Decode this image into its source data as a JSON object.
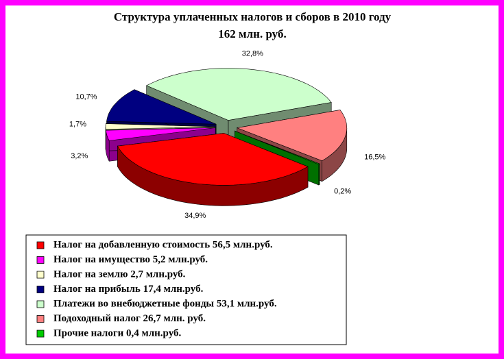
{
  "chart_data": {
    "type": "pie",
    "title": "Структура уплаченных налогов и сборов в 2010 году",
    "subtitle": "162 млн. руб.",
    "categories": [
      "Налог на добавленную стоимость 56,5 млн.руб.",
      "Налог на имущество 5,2  млн.руб.",
      "Налог на землю  2,7  млн.руб.",
      "Налог на прибыль 17,4 млн.руб.",
      "Платежи во внебюджетные фонды 53,1 млн.руб.",
      "Подоходный налог 26,7 млн. руб.",
      "Прочие налоги 0,4 млн.руб."
    ],
    "values": [
      34.9,
      3.2,
      1.7,
      10.7,
      32.8,
      16.5,
      0.2
    ],
    "value_labels": [
      "34,9%",
      "3,2%",
      "1,7%",
      "10,7%",
      "32,8%",
      "16,5%",
      "0,2%"
    ],
    "colors": [
      "#ff0000",
      "#ff00ff",
      "#ffffcc",
      "#000080",
      "#ccffcc",
      "#ff8080",
      "#00cc00"
    ]
  }
}
